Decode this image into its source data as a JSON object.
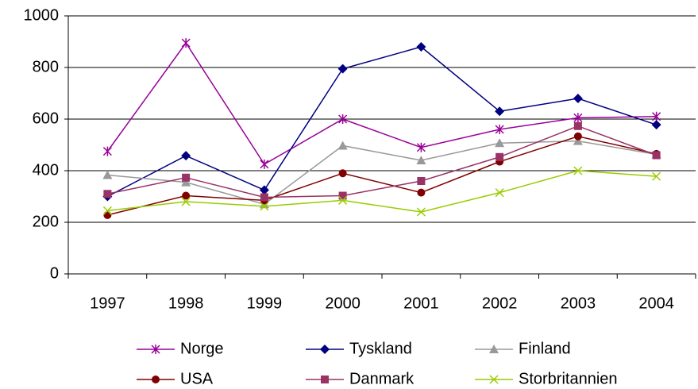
{
  "chart_data": {
    "type": "line",
    "categories": [
      "1997",
      "1998",
      "1999",
      "2000",
      "2001",
      "2002",
      "2003",
      "2004"
    ],
    "series": [
      {
        "name": "Norge",
        "color": "#990099",
        "marker": "star",
        "values": [
          475,
          895,
          425,
          600,
          490,
          560,
          605,
          610
        ]
      },
      {
        "name": "Tyskland",
        "color": "#000080",
        "marker": "diamond",
        "values": [
          300,
          458,
          325,
          795,
          880,
          630,
          680,
          578
        ]
      },
      {
        "name": "Finland",
        "color": "#999999",
        "marker": "triangle",
        "values": [
          383,
          355,
          270,
          497,
          440,
          507,
          515,
          463
        ]
      },
      {
        "name": "USA",
        "color": "#800000",
        "marker": "circle",
        "values": [
          228,
          303,
          285,
          390,
          315,
          435,
          533,
          465
        ]
      },
      {
        "name": "Danmark",
        "color": "#993366",
        "marker": "square",
        "values": [
          310,
          373,
          297,
          303,
          360,
          453,
          573,
          460
        ]
      },
      {
        "name": "Storbritannien",
        "color": "#99cc00",
        "marker": "x",
        "values": [
          245,
          280,
          262,
          285,
          240,
          315,
          400,
          378
        ]
      }
    ],
    "ylim": [
      0,
      1000
    ],
    "yticks": [
      0,
      200,
      400,
      600,
      800,
      1000
    ],
    "grid": true,
    "legend": "bottom"
  }
}
